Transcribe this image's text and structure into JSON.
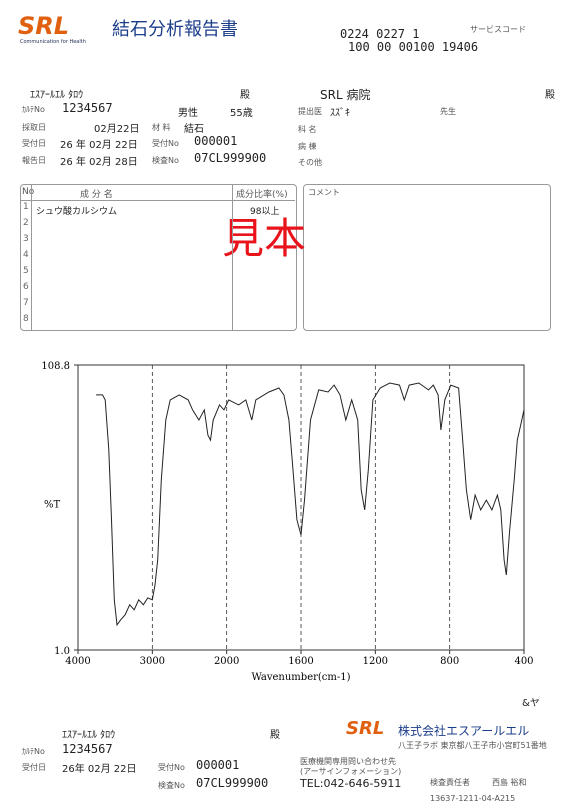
{
  "header": {
    "logo": "SRL",
    "logo_sub": "Communication for Health",
    "title": "結石分析報告書",
    "code_line1": "0224 0227 1",
    "code_label": "サービスコード",
    "code_line2": "100 00 00100 19406"
  },
  "patient": {
    "name": "ｴｽｱｰﾙｴﾙ ﾀﾛｳ",
    "honorific": "殿",
    "chart_no_label": "ｶﾙﾃNo",
    "chart_no": "1234567",
    "sex": "男性",
    "age": "55歳",
    "collect_label": "採取日",
    "collect_date": "02月22日",
    "material_label": "材 料",
    "material": "結石",
    "recv_label": "受付日",
    "recv_date": "26 年 02月 22日",
    "recv_no_label": "受付No",
    "recv_no": "000001",
    "report_label": "報告日",
    "report_date": "26 年 02月 28日",
    "test_no_label": "検査No",
    "test_no": "07CL999900"
  },
  "hospital": {
    "name": "SRL 病院",
    "honorific": "殿",
    "doctor_label": "提出医",
    "doctor": "ｽｽﾞｷ",
    "doctor_suffix": "先生",
    "dept_label": "科 名",
    "ward_label": "病 棟",
    "other_label": "その他"
  },
  "table": {
    "headers": [
      "No",
      "成 分 名",
      "成分比率(%)"
    ],
    "comment_label": "コメント",
    "row_numbers": [
      "1",
      "2",
      "3",
      "4",
      "5",
      "6",
      "7",
      "8"
    ],
    "rows": [
      [
        "シュウ酸カルシウム",
        "98以上"
      ]
    ]
  },
  "watermark": "見本",
  "chart_data": {
    "type": "line",
    "y_label": "%T",
    "x_label": "Wavenumber(cm-1)",
    "ylim": [
      1,
      108.8
    ],
    "yticks": [
      {
        "value": 108.8,
        "label": "108.8"
      },
      {
        "value": 1,
        "label": "1.0"
      }
    ],
    "xlim": [
      4000,
      400
    ],
    "xticks": [
      4000,
      3000,
      2000,
      1600,
      1200,
      800,
      400
    ],
    "color": "#222222",
    "grid": true,
    "x": [
      3756,
      3671,
      3634,
      3585,
      3549,
      3512,
      3476,
      3427,
      3366,
      3305,
      3244,
      3183,
      3122,
      3061,
      3000,
      2964,
      2928,
      2880,
      2819,
      2759,
      2639,
      2518,
      2458,
      2373,
      2301,
      2253,
      2217,
      2181,
      2096,
      2036,
      1989,
      1935,
      1897,
      1865,
      1843,
      1773,
      1719,
      1692,
      1665,
      1643,
      1622,
      1600,
      1581,
      1549,
      1505,
      1454,
      1422,
      1390,
      1359,
      1327,
      1295,
      1276,
      1257,
      1238,
      1213,
      1174,
      1122,
      1070,
      1044,
      1018,
      966,
      914,
      888,
      862,
      847,
      826,
      794,
      752,
      734,
      710,
      687,
      663,
      633,
      603,
      573,
      543,
      525,
      507,
      495,
      477,
      453,
      436,
      412,
      400
    ],
    "values": [
      97.5,
      97.5,
      95.6,
      76.7,
      50.3,
      20.0,
      10.5,
      12.4,
      14.3,
      18.1,
      16.2,
      20.0,
      18.1,
      20.7,
      20.0,
      25.6,
      35.1,
      65.3,
      88.0,
      95.6,
      97.5,
      95.6,
      91.8,
      88.0,
      91.8,
      82.3,
      80.4,
      88.0,
      93.7,
      91.8,
      95.6,
      93.7,
      95.6,
      88.0,
      95.6,
      98.6,
      100.1,
      97.5,
      88.0,
      69.1,
      50.3,
      44.5,
      57.7,
      88.0,
      99.4,
      98.6,
      101.2,
      97.5,
      88.0,
      95.6,
      88.0,
      61.5,
      54.0,
      69.1,
      95.6,
      100.1,
      102.0,
      101.2,
      95.6,
      101.2,
      102.0,
      99.4,
      101.2,
      97.5,
      84.2,
      95.6,
      101.2,
      100.1,
      84.2,
      61.5,
      50.3,
      59.6,
      54.0,
      57.7,
      54.0,
      59.6,
      54.0,
      35.1,
      29.4,
      46.4,
      65.3,
      80.4,
      88.0,
      91.8
    ]
  },
  "footer": {
    "mark": "&ヤ",
    "name": "ｴｽｱｰﾙｴﾙ ﾀﾛｳ",
    "honorific": "殿",
    "chart_no_label": "ｶﾙﾃNo",
    "chart_no": "1234567",
    "recv_label": "受付日",
    "recv_date": "26年 02月 22日",
    "recv_no_label": "受付No",
    "recv_no": "000001",
    "test_no_label": "検査No",
    "test_no": "07CL999900",
    "logo": "SRL",
    "company": "株式会社エスアールエル",
    "lab": "八王子ラボ 東京都八王子市小宮町51番地",
    "inquiry": "医療機関専用問い合わせ先",
    "inquiry_sub": "(アーサインフォメーション)",
    "tel": "TEL:042-646-5911",
    "manager_label": "検査責任者",
    "manager": "西島 裕和",
    "doc_code": "13637-1211-04-A215"
  }
}
